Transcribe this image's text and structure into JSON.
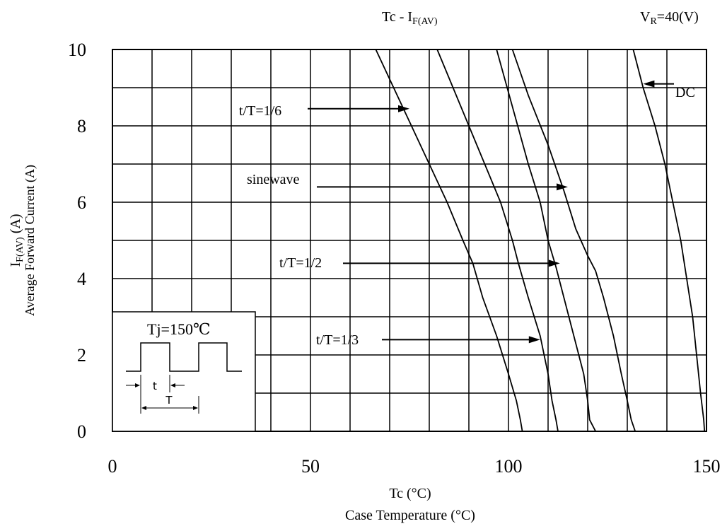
{
  "chart_data": {
    "type": "line",
    "title": {
      "main": "Tc - I",
      "main_sub": "F(AV)",
      "condition_prefix": "V",
      "condition_sub": "R",
      "condition_suffix": "=40(V)"
    },
    "xlabel": {
      "line1": "Tc (°C)",
      "line2": "Case Temperature (°C)"
    },
    "ylabel": {
      "line1_main": "I",
      "line1_sub": "F(AV)",
      "line1_suffix": " (A)",
      "line2": "Average Forward Current (A)"
    },
    "xlim": [
      0,
      150
    ],
    "ylim": [
      0,
      10
    ],
    "x_ticks": [
      {
        "value": 0,
        "label": "0"
      },
      {
        "value": 50,
        "label": "50"
      },
      {
        "value": 100,
        "label": "100"
      },
      {
        "value": 150,
        "label": "150"
      }
    ],
    "y_ticks": [
      {
        "value": 0,
        "label": "0"
      },
      {
        "value": 2,
        "label": "2"
      },
      {
        "value": 4,
        "label": "4"
      },
      {
        "value": 6,
        "label": "6"
      },
      {
        "value": 8,
        "label": "8"
      },
      {
        "value": 10,
        "label": "10"
      }
    ],
    "grid": {
      "x_step": 10,
      "y_step": 1,
      "shown": true
    },
    "series": [
      {
        "name": "t/T=1/6",
        "points": [
          [
            66.5,
            10
          ],
          [
            71,
            9
          ],
          [
            75.5,
            8
          ],
          [
            80,
            7
          ],
          [
            84.5,
            6
          ],
          [
            88.5,
            5
          ],
          [
            91,
            4.4
          ],
          [
            93.5,
            3.5
          ],
          [
            97,
            2.5
          ],
          [
            100,
            1.5
          ],
          [
            102,
            0.8
          ],
          [
            103,
            0.3
          ],
          [
            103.5,
            0
          ]
        ]
      },
      {
        "name": "t/T=1/3",
        "points": [
          [
            82,
            10
          ],
          [
            86,
            9
          ],
          [
            90,
            8
          ],
          [
            94,
            7
          ],
          [
            98,
            6
          ],
          [
            101,
            5
          ],
          [
            102.5,
            4.4
          ],
          [
            105,
            3.5
          ],
          [
            108,
            2.5
          ],
          [
            110,
            1.5
          ],
          [
            111,
            0.8
          ],
          [
            112,
            0.3
          ],
          [
            112.5,
            0
          ]
        ]
      },
      {
        "name": "t/T=1/2",
        "points": [
          [
            97,
            10
          ],
          [
            101,
            8.5
          ],
          [
            105,
            7
          ],
          [
            108,
            6
          ],
          [
            110,
            5
          ],
          [
            112,
            4.3
          ],
          [
            114,
            3.5
          ],
          [
            116.5,
            2.5
          ],
          [
            119,
            1.5
          ],
          [
            120,
            0.8
          ],
          [
            120.5,
            0.3
          ],
          [
            122,
            0
          ]
        ]
      },
      {
        "name": "sinewave",
        "points": [
          [
            101,
            10
          ],
          [
            105,
            8.8
          ],
          [
            110,
            7.5
          ],
          [
            114,
            6.3
          ],
          [
            117,
            5.3
          ],
          [
            120,
            4.6
          ],
          [
            122,
            4.2
          ],
          [
            124,
            3.5
          ],
          [
            126.5,
            2.5
          ],
          [
            128.5,
            1.5
          ],
          [
            130,
            0.8
          ],
          [
            131,
            0.3
          ],
          [
            132,
            0
          ]
        ]
      },
      {
        "name": "DC",
        "points": [
          [
            131.5,
            10
          ],
          [
            134,
            9
          ],
          [
            137,
            8
          ],
          [
            139.5,
            7
          ],
          [
            141.5,
            6
          ],
          [
            143.5,
            5
          ],
          [
            145,
            4
          ],
          [
            146.5,
            3
          ],
          [
            147.5,
            2
          ],
          [
            148.5,
            1
          ],
          [
            149.3,
            0.3
          ],
          [
            149.5,
            0
          ]
        ]
      }
    ],
    "labels": [
      {
        "text": "t/T=1/6",
        "arrow_to": [
          75,
          8.45
        ]
      },
      {
        "text": "sinewave",
        "arrow_to": [
          115,
          6.4
        ]
      },
      {
        "text": "t/T=1/2",
        "arrow_to": [
          113,
          4.4
        ]
      },
      {
        "text": "t/T=1/3",
        "arrow_to": [
          108,
          2.4
        ]
      },
      {
        "text": "DC",
        "arrow_to": [
          134,
          9.1
        ]
      }
    ],
    "inset": {
      "title": "Tj=150℃",
      "t_label": "t",
      "T_label": "T"
    }
  }
}
